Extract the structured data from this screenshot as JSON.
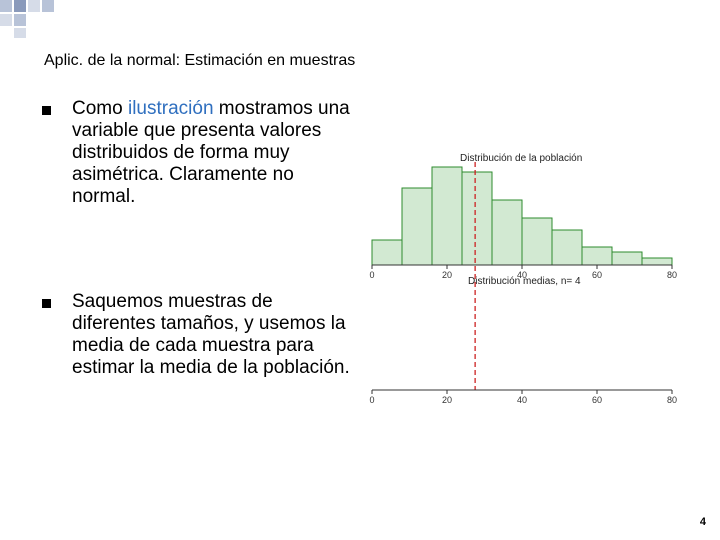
{
  "slide": {
    "title": "Aplic. de la normal: Estimación en muestras",
    "bullets": [
      {
        "parts": [
          "Como ",
          "ilustración",
          " mostramos una variable que presenta valores distribuidos de forma muy asimétrica. Claramente no normal."
        ]
      },
      {
        "parts": [
          "Saquemos muestras de diferentes tamaños, y usemos la media de cada muestra para estimar la media de la población."
        ]
      }
    ],
    "page_number": "4"
  },
  "chart_data": [
    {
      "type": "histogram",
      "title": "Distribución de la población",
      "bins": [
        0,
        8,
        16,
        24,
        32,
        40,
        48,
        56,
        64,
        72,
        80
      ],
      "values": [
        25,
        77,
        98,
        93,
        65,
        47,
        35,
        18,
        13,
        7
      ],
      "color": "#d2e9d2",
      "edge_color": "#2e8b2e",
      "xlim": [
        0,
        80
      ],
      "xticks": [
        0,
        20,
        40,
        60,
        80
      ],
      "ylim": [
        0,
        105
      ],
      "mean": 27.5,
      "mean_color": "#cc2222"
    },
    {
      "type": "axis",
      "title": "Distribución medias, n= 4",
      "xlim": [
        0,
        80
      ],
      "xticks": [
        0,
        20,
        40,
        60,
        80
      ]
    }
  ]
}
